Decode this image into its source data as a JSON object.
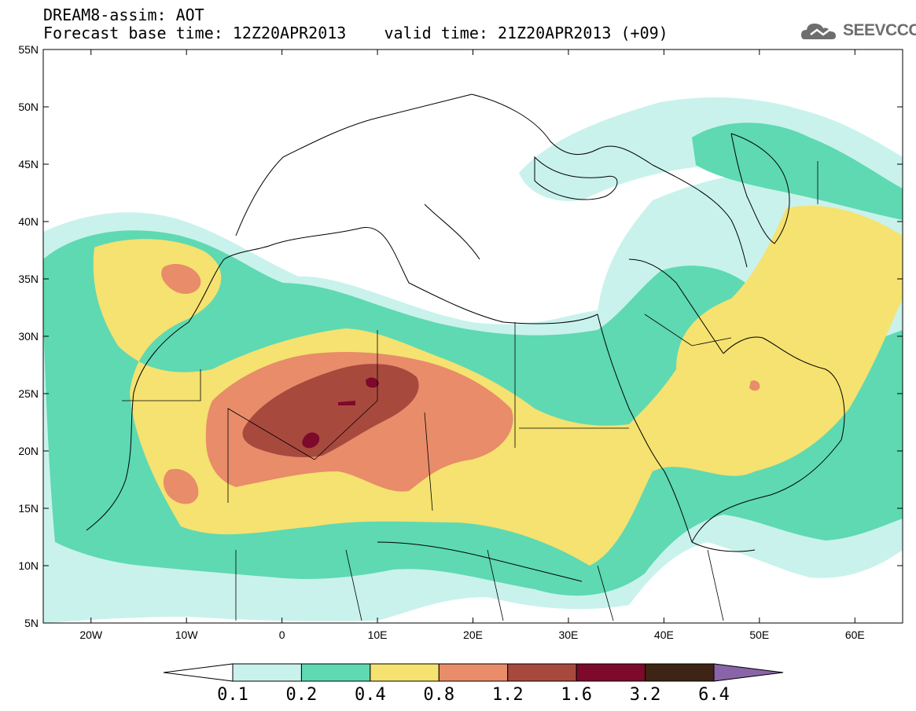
{
  "header": {
    "title_line1": "DREAM8-assim: AOT",
    "title_line2": "Forecast base time: 12Z20APR2013    valid time: 21Z20APR2013 (+09)"
  },
  "logo": {
    "text": "SEEVCCC",
    "icon": "cloud-icon"
  },
  "map": {
    "lon_range": [
      -25,
      65
    ],
    "lat_range": [
      5,
      55
    ],
    "lat_labels": [
      "55N",
      "50N",
      "45N",
      "40N",
      "35N",
      "30N",
      "25N",
      "20N",
      "15N",
      "10N",
      "5N"
    ],
    "lon_labels": [
      "20W",
      "10W",
      "0",
      "10E",
      "20E",
      "30E",
      "40E",
      "50E",
      "60E"
    ]
  },
  "colorbar": {
    "labels": [
      "0.1",
      "0.2",
      "0.4",
      "0.8",
      "1.2",
      "1.6",
      "3.2",
      "6.4"
    ],
    "colors": [
      "#ffffff",
      "#c9f2ec",
      "#5ed9b2",
      "#f5e270",
      "#e88c6a",
      "#a8493e",
      "#7d0a2a",
      "#3d2414",
      "#8a64a8"
    ]
  }
}
